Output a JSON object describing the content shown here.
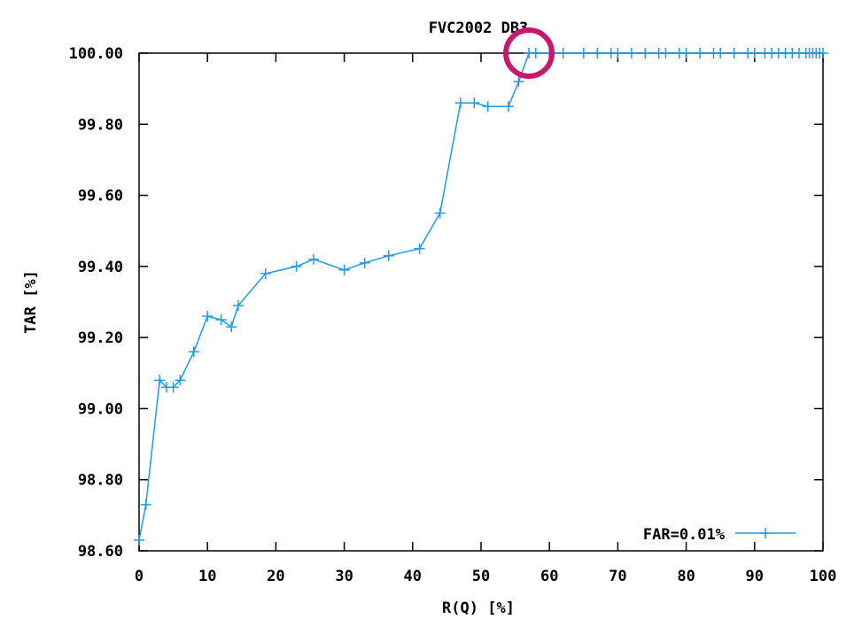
{
  "chart_data": {
    "type": "line",
    "title": "FVC2002 DB3",
    "xlabel": "R(Q) [%]",
    "ylabel": "TAR [%]",
    "xlim": [
      0,
      100
    ],
    "ylim": [
      98.6,
      100.0
    ],
    "xticks": [
      "0",
      "10",
      "20",
      "30",
      "40",
      "50",
      "60",
      "70",
      "80",
      "90",
      "100"
    ],
    "yticks": [
      "98.60",
      "98.80",
      "99.00",
      "99.20",
      "99.40",
      "99.60",
      "99.80",
      "100.00"
    ],
    "legend_position": "bottom-right",
    "grid": false,
    "series": [
      {
        "name": "FAR=0.01%",
        "color": "#1E9BE8",
        "marker": "plus",
        "x": [
          0,
          1,
          3,
          4,
          5,
          6,
          8,
          10,
          12,
          13.5,
          14.5,
          18.5,
          23,
          25.5,
          30,
          33,
          36.5,
          41,
          44,
          47,
          49,
          51,
          54,
          55.5,
          57,
          58,
          60,
          62,
          65,
          67,
          69,
          70,
          72,
          74,
          76,
          77,
          79,
          80,
          82,
          84,
          85,
          87,
          89,
          90,
          91.5,
          92.5,
          93.5,
          94.5,
          95.5,
          96.5,
          97.5,
          98,
          98.5,
          99,
          99.5,
          100
        ],
        "y": [
          98.63,
          98.73,
          99.08,
          99.06,
          99.06,
          99.08,
          99.16,
          99.26,
          99.25,
          99.23,
          99.29,
          99.38,
          99.4,
          99.42,
          99.39,
          99.41,
          99.43,
          99.45,
          99.55,
          99.86,
          99.86,
          99.85,
          99.85,
          99.92,
          100.0,
          100.0,
          100.0,
          100.0,
          100.0,
          100.0,
          100.0,
          100.0,
          100.0,
          100.0,
          100.0,
          100.0,
          100.0,
          100.0,
          100.0,
          100.0,
          100.0,
          100.0,
          100.0,
          100.0,
          100.0,
          100.0,
          100.0,
          100.0,
          100.0,
          100.0,
          100.0,
          100.0,
          100.0,
          100.0,
          100.0,
          100.0
        ]
      }
    ],
    "annotation": {
      "type": "circle",
      "color": "#C8176E",
      "x": 57,
      "y": 100.0
    }
  }
}
